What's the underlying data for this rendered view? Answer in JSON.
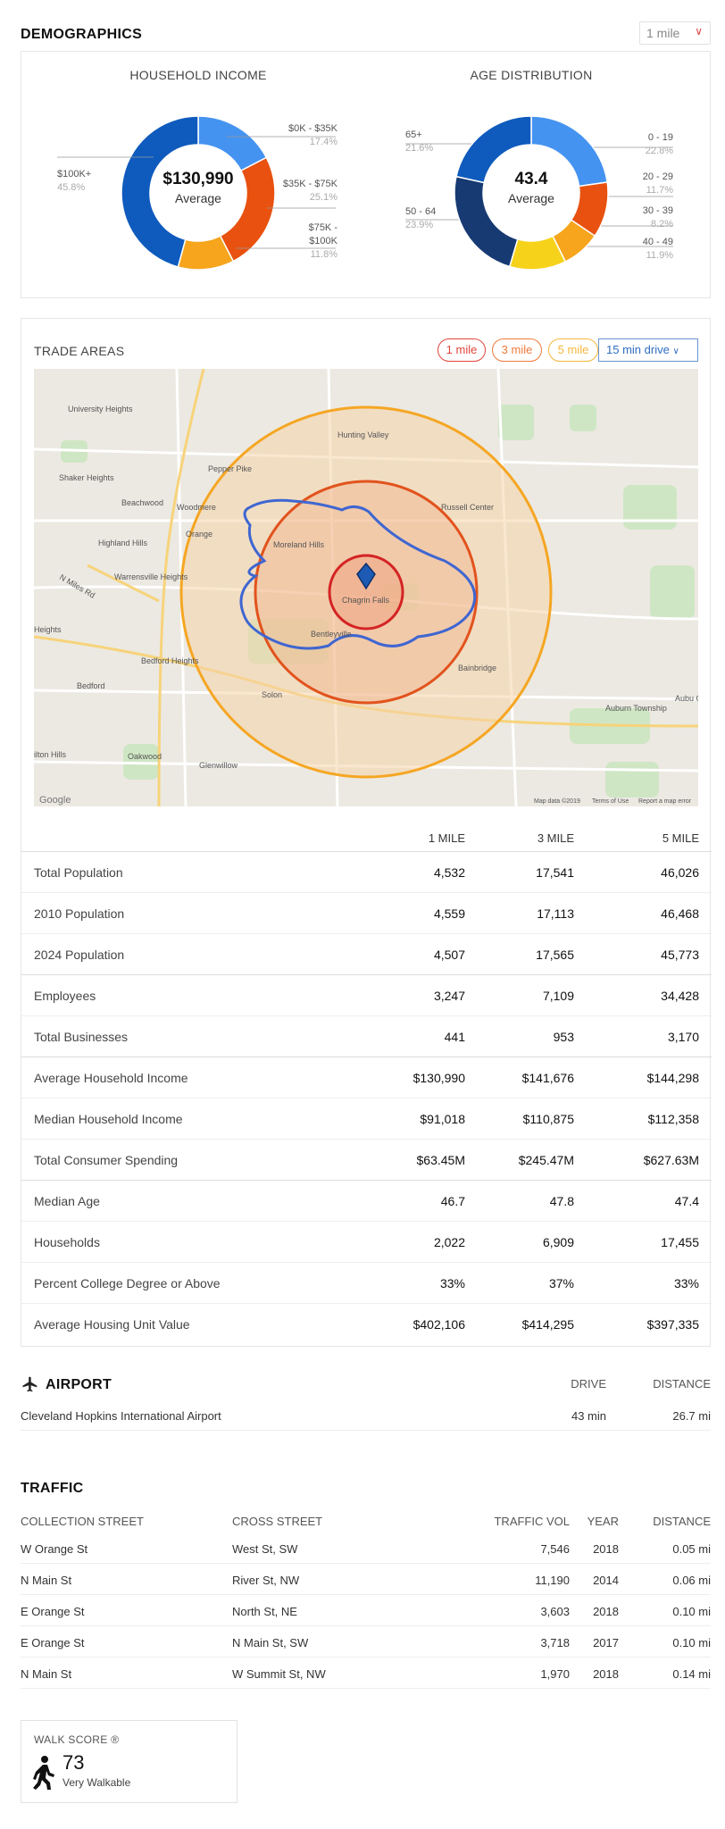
{
  "demographics": {
    "title": "DEMOGRAPHICS",
    "radius_select": "1 mile",
    "household_income": {
      "title": "HOUSEHOLD INCOME",
      "center_value": "$130,990",
      "center_label": "Average",
      "segments": [
        {
          "label": "$0K - $35K",
          "pct": "17.4%",
          "value": 17.4,
          "color": "#4593f0"
        },
        {
          "label": "$35K - $75K",
          "pct": "25.1%",
          "value": 25.1,
          "color": "#e8510f"
        },
        {
          "label": "$75K - $100K",
          "pct": "11.8%",
          "value": 11.8,
          "color": "#f6a51c"
        },
        {
          "label": "$100K+",
          "pct": "45.8%",
          "value": 45.8,
          "color": "#0f5bbd"
        }
      ]
    },
    "age_distribution": {
      "title": "AGE DISTRIBUTION",
      "center_value": "43.4",
      "center_label": "Average",
      "segments": [
        {
          "label": "0 - 19",
          "pct": "22.8%",
          "value": 22.8,
          "color": "#4593f0"
        },
        {
          "label": "20 - 29",
          "pct": "11.7%",
          "value": 11.7,
          "color": "#e8510f"
        },
        {
          "label": "30 - 39",
          "pct": "8.2%",
          "value": 8.2,
          "color": "#f6a51c"
        },
        {
          "label": "40 - 49",
          "pct": "11.9%",
          "value": 11.9,
          "color": "#f7d21b"
        },
        {
          "label": "50 - 64",
          "pct": "23.9%",
          "value": 23.9,
          "color": "#173a73"
        },
        {
          "label": "65+",
          "pct": "21.6%",
          "value": 21.6,
          "color": "#0f5bbd"
        }
      ]
    }
  },
  "trade_areas": {
    "title": "TRADE AREAS",
    "pills": [
      "1 mile",
      "3 mile",
      "5 mile"
    ],
    "drive_select": "15 min drive",
    "map": {
      "center_label": "Chagrin Falls",
      "places": [
        "University Heights",
        "Shaker Heights",
        "Beachwood",
        "Woodmere",
        "Pepper Pike",
        "Hunting Valley",
        "Russell Center",
        "Moreland Hills",
        "Highland Hills",
        "Orange",
        "Warrensville Heights",
        "Bentleyville",
        "Bainbridge",
        "Bedford Heights",
        "Bedford",
        "Solon",
        "Oakwood",
        "Glenwillow",
        "Auburn Township",
        "Heights",
        "ilton Hills",
        "N Miles Rd",
        "Aubu Cen"
      ],
      "attribution": "Map data ©2019",
      "terms": "Terms of Use",
      "report": "Report a map error",
      "google": "Google"
    },
    "columns": [
      "1 MILE",
      "3 MILE",
      "5 MILE"
    ],
    "rows": [
      {
        "label": "Total Population",
        "v": [
          "4,532",
          "17,541",
          "46,026"
        ]
      },
      {
        "label": "2010 Population",
        "v": [
          "4,559",
          "17,113",
          "46,468"
        ]
      },
      {
        "label": "2024 Population",
        "v": [
          "4,507",
          "17,565",
          "45,773"
        ]
      },
      {
        "label": "Employees",
        "v": [
          "3,247",
          "7,109",
          "34,428"
        ]
      },
      {
        "label": "Total Businesses",
        "v": [
          "441",
          "953",
          "3,170"
        ]
      },
      {
        "label": "Average Household Income",
        "v": [
          "$130,990",
          "$141,676",
          "$144,298"
        ]
      },
      {
        "label": "Median Household Income",
        "v": [
          "$91,018",
          "$110,875",
          "$112,358"
        ]
      },
      {
        "label": "Total Consumer Spending",
        "v": [
          "$63.45M",
          "$245.47M",
          "$627.63M"
        ]
      },
      {
        "label": "Median Age",
        "v": [
          "46.7",
          "47.8",
          "47.4"
        ]
      },
      {
        "label": "Households",
        "v": [
          "2,022",
          "6,909",
          "17,455"
        ]
      },
      {
        "label": "Percent College Degree or Above",
        "v": [
          "33%",
          "37%",
          "33%"
        ]
      },
      {
        "label": "Average Housing Unit Value",
        "v": [
          "$402,106",
          "$414,295",
          "$397,335"
        ]
      }
    ]
  },
  "airport": {
    "title": "AIRPORT",
    "drive_header": "DRIVE",
    "distance_header": "DISTANCE",
    "name": "Cleveland Hopkins International Airport",
    "drive": "43 min",
    "distance": "26.7 mi"
  },
  "traffic": {
    "title": "TRAFFIC",
    "headers": [
      "COLLECTION STREET",
      "CROSS STREET",
      "TRAFFIC VOL",
      "YEAR",
      "DISTANCE"
    ],
    "rows": [
      [
        "W Orange St",
        "West St, SW",
        "7,546",
        "2018",
        "0.05 mi"
      ],
      [
        "N Main St",
        "River St, NW",
        "11,190",
        "2014",
        "0.06 mi"
      ],
      [
        "E Orange St",
        "North St, NE",
        "3,603",
        "2018",
        "0.10 mi"
      ],
      [
        "E Orange St",
        "N Main St, SW",
        "3,718",
        "2017",
        "0.10 mi"
      ],
      [
        "N Main St",
        "W Summit St, NW",
        "1,970",
        "2018",
        "0.14 mi"
      ]
    ]
  },
  "walk_score": {
    "title": "WALK SCORE ®",
    "score": "73",
    "description": "Very Walkable"
  }
}
